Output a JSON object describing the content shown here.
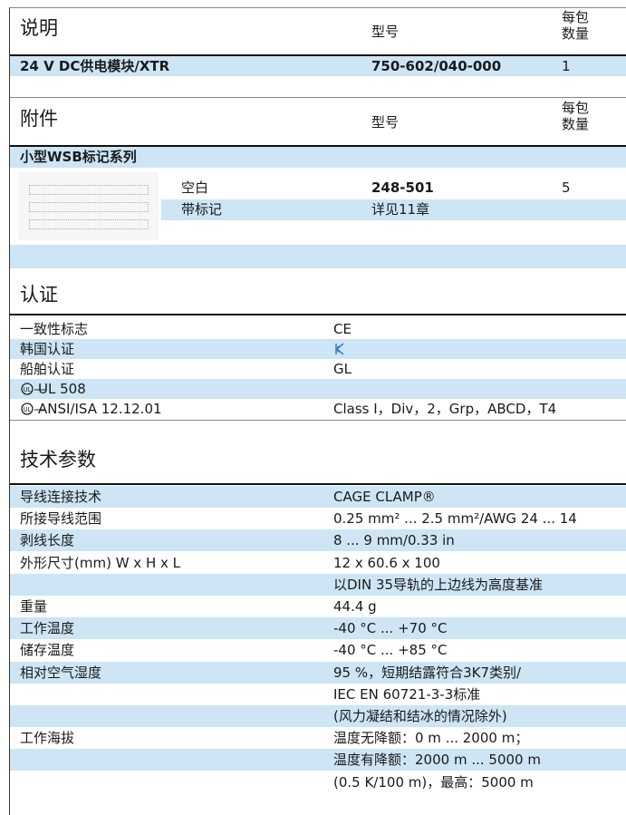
{
  "product": {
    "header": {
      "col1": "说明",
      "col2": "型号",
      "col3": [
        "每包",
        "数量"
      ]
    },
    "rows": [
      [
        "24 V DC供电模块/XTR",
        "750-602/040-000",
        "1"
      ]
    ]
  },
  "accessories": {
    "header": {
      "col1": "附件",
      "col2": "型号",
      "col3": [
        "每包",
        "数量"
      ]
    },
    "group": "小型WSB标记系列",
    "items": [
      [
        "空白",
        "248-501",
        "5"
      ],
      [
        "带标记",
        "详见11章"
      ]
    ]
  },
  "approvals": {
    "title": "认证",
    "rows": [
      [
        "一致性标志",
        "CE"
      ],
      [
        "韩国认证"
      ],
      [
        "船舶认证",
        "GL"
      ],
      [
        "UL 508"
      ],
      [
        "ANSI/ISA 12.12.01",
        "Class I，Div，2，Grp，ABCD，T4"
      ]
    ]
  },
  "tech": {
    "title": "技术参数",
    "rows": [
      [
        "导线连接技术",
        "CAGE CLAMP®"
      ],
      [
        "所接导线范围",
        "0.25 mm² ... 2.5 mm²/AWG 24 ... 14"
      ],
      [
        "剥线长度",
        "8 ... 9 mm/0.33 in"
      ],
      [
        "外形尺寸(mm) W x H x L",
        "12 x 60.6 x 100"
      ],
      [
        null,
        "以DIN 35导轨的上边线为高度基准"
      ],
      [
        "重量",
        "44.4 g"
      ],
      [
        "工作温度",
        "-40 °C ... +70 °C"
      ],
      [
        "储存温度",
        "-40 °C ... +85 °C"
      ],
      [
        "相对空气湿度",
        "95 %，短期结露符合3K7类别/"
      ],
      [
        null,
        "IEC EN 60721-3-3标准"
      ],
      [
        null,
        "(风力凝结和结冰的情况除外)"
      ],
      [
        "工作海拔",
        "温度无降额：0 m ... 2000 m；"
      ],
      [
        null,
        "温度有降额：2000 m ... 5000 m"
      ],
      [
        null,
        "(0.5 K/100 m)，最高：5000 m"
      ]
    ]
  }
}
